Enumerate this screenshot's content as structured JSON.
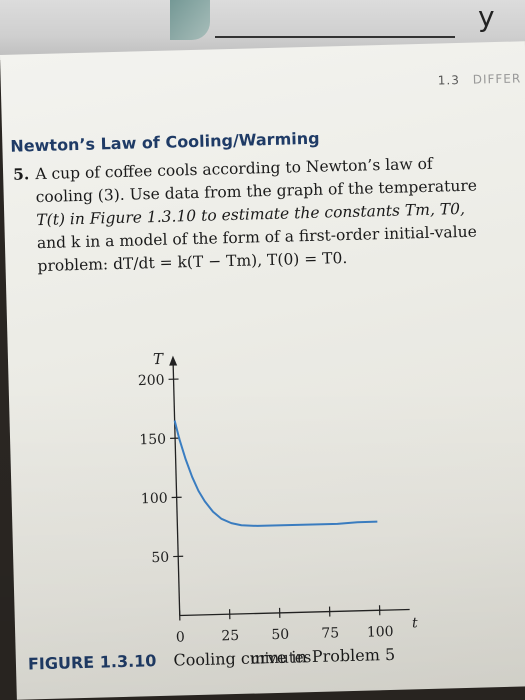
{
  "top_note": "y",
  "page_header": {
    "section_number": "1.3",
    "section_title": "DIFFER"
  },
  "heading": "Newton’s Law of Cooling/Warming",
  "problem": {
    "number": "5.",
    "line1": "A cup of coffee cools according to Newton’s law of",
    "line2": "cooling (3). Use data from the graph of the temperature",
    "line3": "T(t) in Figure 1.3.10 to estimate the constants Tm, T0,",
    "line4": "and k in a model of the form of a first-order initial-value",
    "line5": "problem: dT/dt = k(T − Tm), T(0) = T0."
  },
  "figure": {
    "label": "FIGURE 1.3.10",
    "caption": "Cooling curve in Problem 5"
  },
  "chart_data": {
    "type": "line",
    "xlabel": "minutes",
    "ylabel": "T",
    "x_axis_symbol": "t",
    "xlim": [
      0,
      115
    ],
    "ylim": [
      0,
      220
    ],
    "x_ticks": [
      "0",
      "25",
      "50",
      "75",
      "100"
    ],
    "y_ticks": [
      "50",
      "100",
      "150",
      "200"
    ],
    "series": [
      {
        "color": "#3b7fc4",
        "x": [
          0,
          2,
          5,
          8,
          11,
          14,
          18,
          22,
          27,
          32,
          40,
          50,
          60,
          70,
          80,
          90,
          100
        ],
        "y": [
          165,
          150,
          132,
          117,
          105,
          96,
          87,
          81,
          77,
          75,
          74,
          74,
          74,
          74,
          74,
          75,
          75
        ]
      }
    ]
  }
}
